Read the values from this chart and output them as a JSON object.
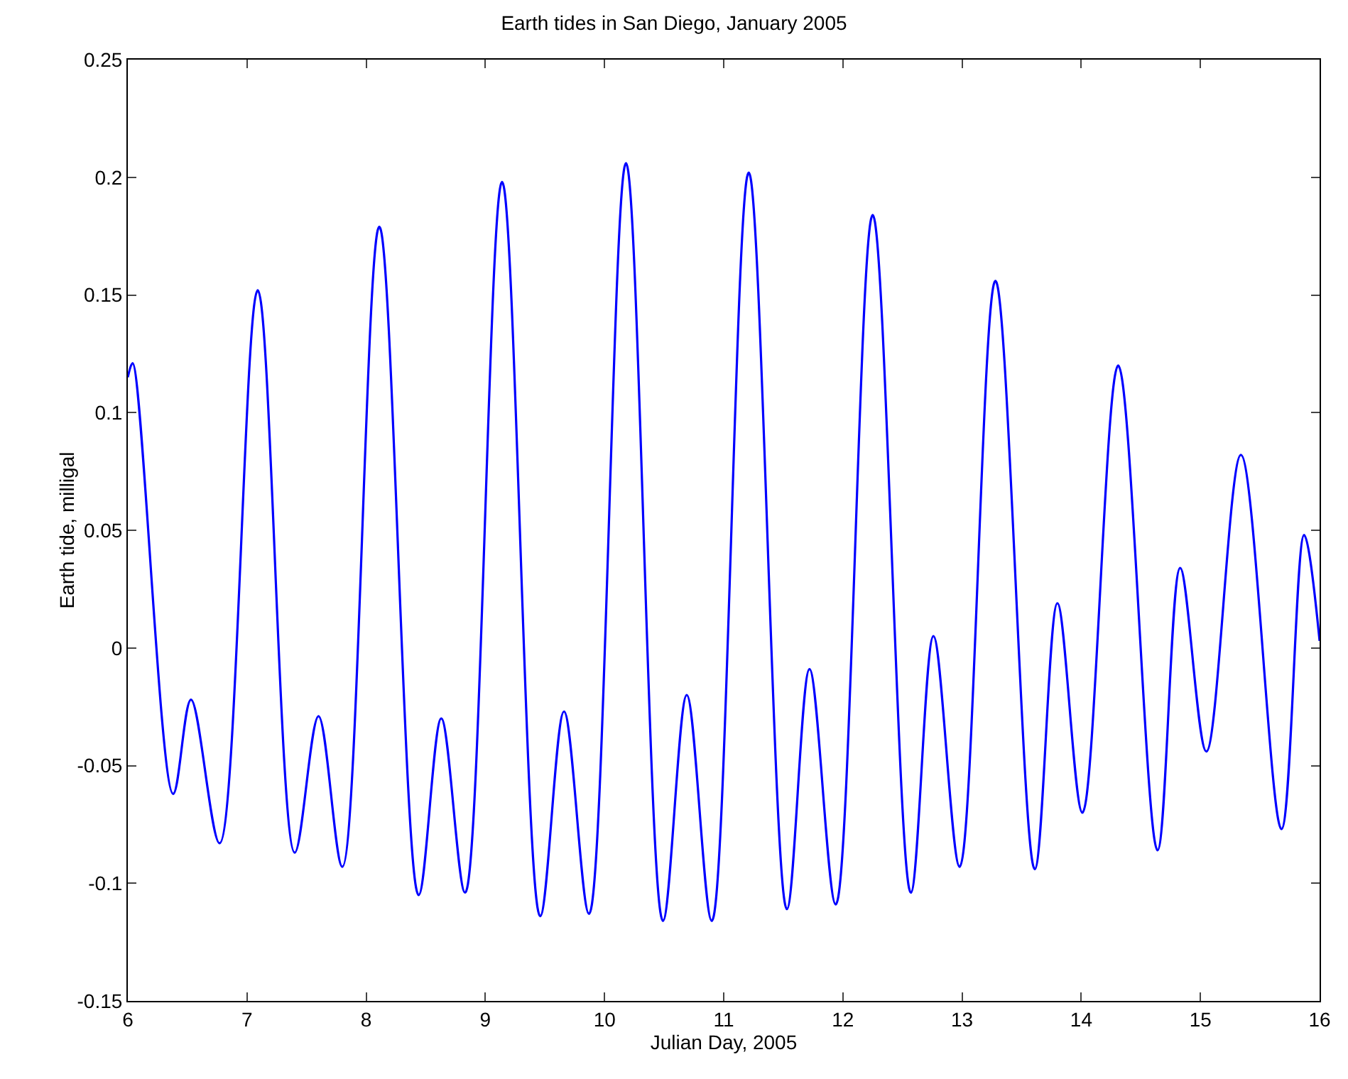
{
  "chart_data": {
    "type": "line",
    "title": "Earth tides in San Diego, January 2005",
    "xlabel": "Julian Day, 2005",
    "ylabel": "Earth tide, milligal",
    "x": [
      6,
      6.04,
      6.38,
      6.53,
      6.77,
      7.09,
      7.4,
      7.6,
      7.8,
      8.11,
      8.44,
      8.63,
      8.83,
      9.14,
      9.46,
      9.66,
      9.87,
      10.18,
      10.49,
      10.69,
      10.9,
      11.21,
      11.53,
      11.72,
      11.94,
      12.25,
      12.57,
      12.76,
      12.98,
      13.28,
      13.61,
      13.8,
      14.01,
      14.31,
      14.64,
      14.83,
      15.05,
      15.34,
      15.68,
      15.87,
      16
    ],
    "series": [
      {
        "color": "#0000ff",
        "values": [
          0.115,
          0.121,
          -0.062,
          -0.022,
          -0.083,
          0.152,
          -0.087,
          -0.029,
          -0.093,
          0.179,
          -0.105,
          -0.03,
          -0.104,
          0.198,
          -0.114,
          -0.027,
          -0.113,
          0.206,
          -0.116,
          -0.02,
          -0.116,
          0.202,
          -0.111,
          -0.009,
          -0.109,
          0.184,
          -0.104,
          0.005,
          -0.093,
          0.156,
          -0.094,
          0.019,
          -0.07,
          0.12,
          -0.086,
          0.034,
          -0.044,
          0.082,
          -0.077,
          0.048,
          0.003
        ]
      }
    ],
    "xlim": [
      6,
      16
    ],
    "xticks": [
      6,
      7,
      8,
      9,
      10,
      11,
      12,
      13,
      14,
      15,
      16
    ],
    "ylim": [
      -0.15,
      0.25
    ],
    "yticks": [
      -0.15,
      -0.1,
      -0.05,
      0,
      0.05,
      0.1,
      0.15,
      0.2,
      0.25
    ],
    "grid": false,
    "marker": "none",
    "line_style": "solid"
  }
}
